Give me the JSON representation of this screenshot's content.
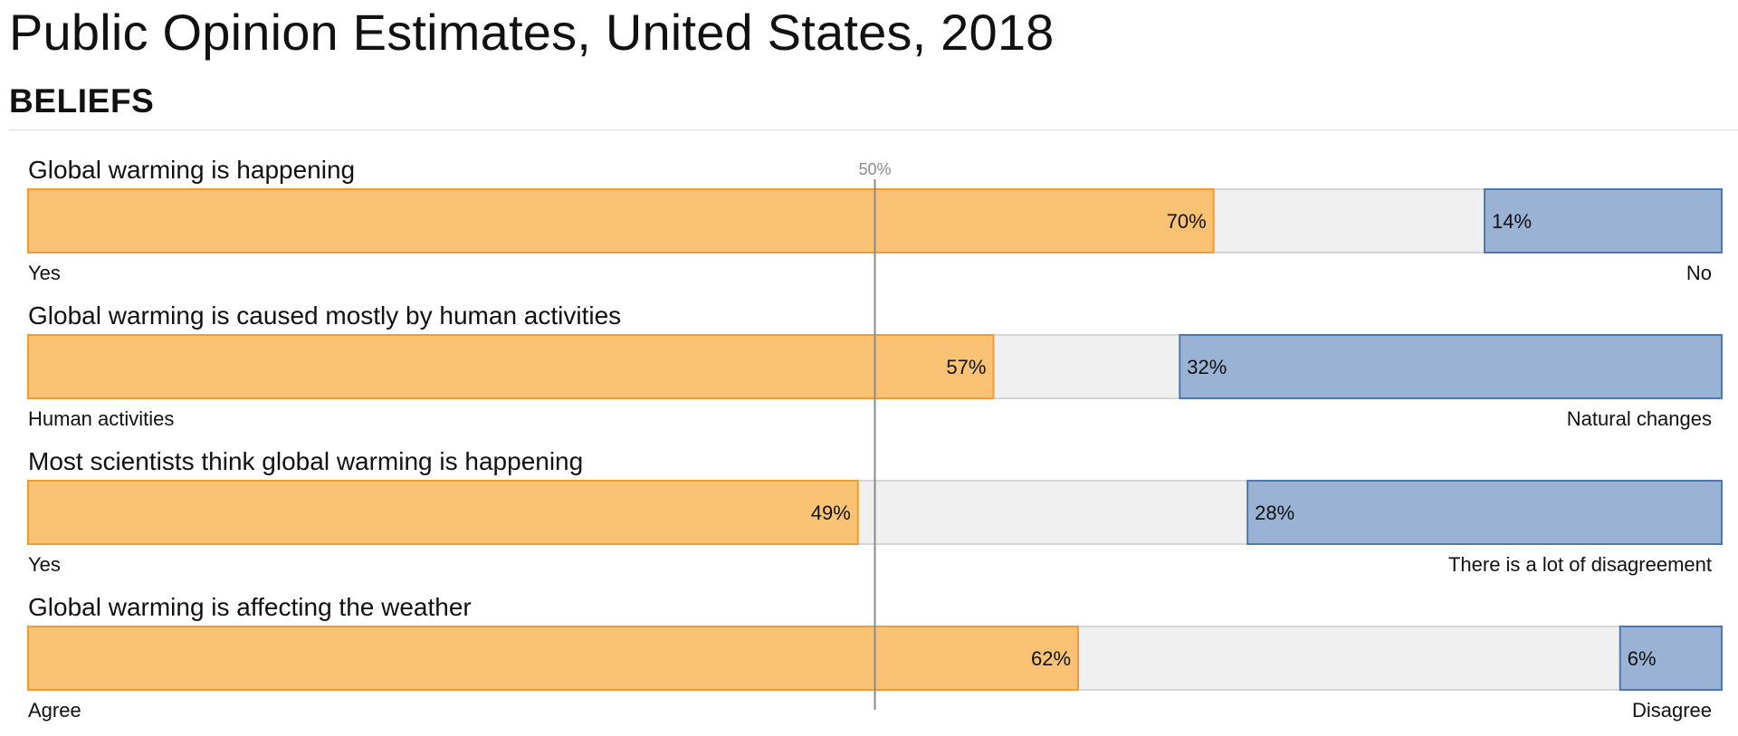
{
  "page": {
    "title": "Public Opinion Estimates, United States, 2018",
    "section": "BELIEFS"
  },
  "colors": {
    "positive_fill": "#fac274",
    "positive_stroke": "#f39a32",
    "negative_fill": "#9ab2d3",
    "negative_stroke": "#4e77ad",
    "neutral_fill": "#f0f0f0",
    "neutral_stroke": "#cccccc",
    "midline": "#8a8a8a"
  },
  "chart_data": {
    "type": "bar",
    "orientation": "horizontal",
    "stacked": true,
    "xlim": [
      0,
      100
    ],
    "reference_line": {
      "value": 50,
      "label": "50%"
    },
    "value_suffix": "%",
    "rows": [
      {
        "question": "Global warming is happening",
        "left_value": 70,
        "right_value": 14,
        "left_label": "Yes",
        "right_label": "No"
      },
      {
        "question": "Global warming is caused mostly by human activities",
        "left_value": 57,
        "right_value": 32,
        "left_label": "Human activities",
        "right_label": "Natural changes"
      },
      {
        "question": "Most scientists think global warming is happening",
        "left_value": 49,
        "right_value": 28,
        "left_label": "Yes",
        "right_label": "There is a lot of disagreement"
      },
      {
        "question": "Global warming is affecting the weather",
        "left_value": 62,
        "right_value": 6,
        "left_label": "Agree",
        "right_label": "Disagree"
      }
    ]
  }
}
